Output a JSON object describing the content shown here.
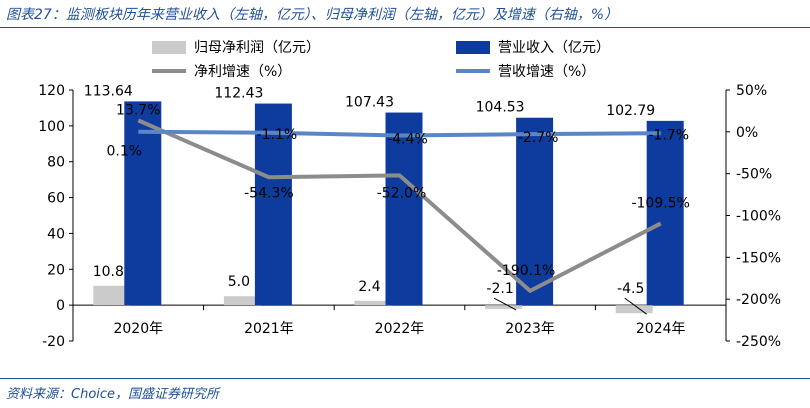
{
  "header": {
    "title": "图表27：监测板块历年来营业收入（左轴，亿元）、归母净利润（左轴，亿元）及增速（右轴，%）"
  },
  "footer": {
    "source": "资料来源：Choice，国盛证券研究所"
  },
  "colors": {
    "revenue": "#0d3c9e",
    "profit": "#cbcbcb",
    "profit_growth": "#8c8c8c",
    "revenue_growth": "#5a86c6",
    "title": "#1f4e9a"
  },
  "chart_data": {
    "type": "bar",
    "categories": [
      "2020年",
      "2021年",
      "2022年",
      "2023年",
      "2024年"
    ],
    "y_left": {
      "range": [
        -20,
        120
      ],
      "ticks": [
        "-20",
        "0",
        "20",
        "40",
        "60",
        "80",
        "100",
        "120"
      ]
    },
    "y_right": {
      "range": [
        -250,
        50
      ],
      "ticks": [
        "50%",
        "0%",
        "-50%",
        "-100%",
        "-150%",
        "-200%",
        "-250%"
      ]
    },
    "series": [
      {
        "name": "归母净利润（亿元）",
        "type": "bar",
        "axis": "left",
        "values": [
          10.8,
          5.0,
          2.4,
          -2.1,
          -4.5
        ],
        "labels": [
          "10.8",
          "5.0",
          "2.4",
          "-2.1",
          "-4.5"
        ]
      },
      {
        "name": "营业收入（亿元）",
        "type": "bar",
        "axis": "left",
        "values": [
          113.64,
          112.43,
          107.43,
          104.53,
          102.79
        ],
        "labels": [
          "113.64",
          "112.43",
          "107.43",
          "104.53",
          "102.79"
        ]
      },
      {
        "name": "净利增速（%）",
        "type": "line",
        "axis": "right",
        "values": [
          13.7,
          -54.3,
          -52.0,
          -190.1,
          -109.5
        ],
        "labels": [
          "13.7%",
          "-54.3%",
          "-52.0%",
          "-190.1%",
          "-109.5%"
        ]
      },
      {
        "name": "营收增速（%）",
        "type": "line",
        "axis": "right",
        "values": [
          0.1,
          -1.1,
          -4.4,
          -2.7,
          -1.7
        ],
        "labels": [
          "0.1%",
          "-1.1%",
          "-4.4%",
          "-2.7%",
          "-1.7%"
        ]
      }
    ],
    "legend_position": "top",
    "grid": false
  }
}
